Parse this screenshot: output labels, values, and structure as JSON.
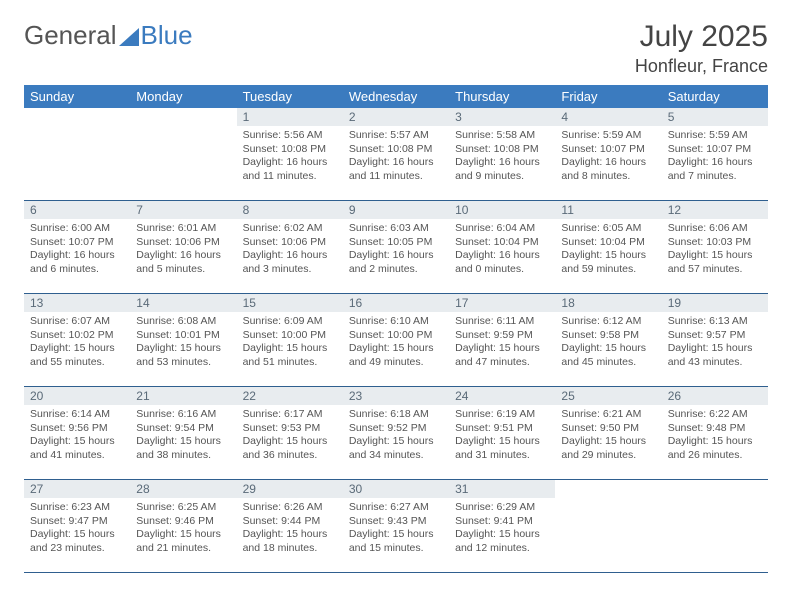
{
  "brand": {
    "word1": "General",
    "word2": "Blue"
  },
  "title": {
    "month_year": "July 2025",
    "location": "Honfleur, France"
  },
  "colors": {
    "header_bg": "#3b7bbf",
    "daynum_bg": "#e8ecef",
    "border": "#2f5f8f",
    "text": "#555"
  },
  "weekdays": [
    "Sunday",
    "Monday",
    "Tuesday",
    "Wednesday",
    "Thursday",
    "Friday",
    "Saturday"
  ],
  "weeks": [
    [
      {
        "empty": true
      },
      {
        "empty": true
      },
      {
        "day": "1",
        "sunrise": "Sunrise: 5:56 AM",
        "sunset": "Sunset: 10:08 PM",
        "daylight": "Daylight: 16 hours and 11 minutes."
      },
      {
        "day": "2",
        "sunrise": "Sunrise: 5:57 AM",
        "sunset": "Sunset: 10:08 PM",
        "daylight": "Daylight: 16 hours and 11 minutes."
      },
      {
        "day": "3",
        "sunrise": "Sunrise: 5:58 AM",
        "sunset": "Sunset: 10:08 PM",
        "daylight": "Daylight: 16 hours and 9 minutes."
      },
      {
        "day": "4",
        "sunrise": "Sunrise: 5:59 AM",
        "sunset": "Sunset: 10:07 PM",
        "daylight": "Daylight: 16 hours and 8 minutes."
      },
      {
        "day": "5",
        "sunrise": "Sunrise: 5:59 AM",
        "sunset": "Sunset: 10:07 PM",
        "daylight": "Daylight: 16 hours and 7 minutes."
      }
    ],
    [
      {
        "day": "6",
        "sunrise": "Sunrise: 6:00 AM",
        "sunset": "Sunset: 10:07 PM",
        "daylight": "Daylight: 16 hours and 6 minutes."
      },
      {
        "day": "7",
        "sunrise": "Sunrise: 6:01 AM",
        "sunset": "Sunset: 10:06 PM",
        "daylight": "Daylight: 16 hours and 5 minutes."
      },
      {
        "day": "8",
        "sunrise": "Sunrise: 6:02 AM",
        "sunset": "Sunset: 10:06 PM",
        "daylight": "Daylight: 16 hours and 3 minutes."
      },
      {
        "day": "9",
        "sunrise": "Sunrise: 6:03 AM",
        "sunset": "Sunset: 10:05 PM",
        "daylight": "Daylight: 16 hours and 2 minutes."
      },
      {
        "day": "10",
        "sunrise": "Sunrise: 6:04 AM",
        "sunset": "Sunset: 10:04 PM",
        "daylight": "Daylight: 16 hours and 0 minutes."
      },
      {
        "day": "11",
        "sunrise": "Sunrise: 6:05 AM",
        "sunset": "Sunset: 10:04 PM",
        "daylight": "Daylight: 15 hours and 59 minutes."
      },
      {
        "day": "12",
        "sunrise": "Sunrise: 6:06 AM",
        "sunset": "Sunset: 10:03 PM",
        "daylight": "Daylight: 15 hours and 57 minutes."
      }
    ],
    [
      {
        "day": "13",
        "sunrise": "Sunrise: 6:07 AM",
        "sunset": "Sunset: 10:02 PM",
        "daylight": "Daylight: 15 hours and 55 minutes."
      },
      {
        "day": "14",
        "sunrise": "Sunrise: 6:08 AM",
        "sunset": "Sunset: 10:01 PM",
        "daylight": "Daylight: 15 hours and 53 minutes."
      },
      {
        "day": "15",
        "sunrise": "Sunrise: 6:09 AM",
        "sunset": "Sunset: 10:00 PM",
        "daylight": "Daylight: 15 hours and 51 minutes."
      },
      {
        "day": "16",
        "sunrise": "Sunrise: 6:10 AM",
        "sunset": "Sunset: 10:00 PM",
        "daylight": "Daylight: 15 hours and 49 minutes."
      },
      {
        "day": "17",
        "sunrise": "Sunrise: 6:11 AM",
        "sunset": "Sunset: 9:59 PM",
        "daylight": "Daylight: 15 hours and 47 minutes."
      },
      {
        "day": "18",
        "sunrise": "Sunrise: 6:12 AM",
        "sunset": "Sunset: 9:58 PM",
        "daylight": "Daylight: 15 hours and 45 minutes."
      },
      {
        "day": "19",
        "sunrise": "Sunrise: 6:13 AM",
        "sunset": "Sunset: 9:57 PM",
        "daylight": "Daylight: 15 hours and 43 minutes."
      }
    ],
    [
      {
        "day": "20",
        "sunrise": "Sunrise: 6:14 AM",
        "sunset": "Sunset: 9:56 PM",
        "daylight": "Daylight: 15 hours and 41 minutes."
      },
      {
        "day": "21",
        "sunrise": "Sunrise: 6:16 AM",
        "sunset": "Sunset: 9:54 PM",
        "daylight": "Daylight: 15 hours and 38 minutes."
      },
      {
        "day": "22",
        "sunrise": "Sunrise: 6:17 AM",
        "sunset": "Sunset: 9:53 PM",
        "daylight": "Daylight: 15 hours and 36 minutes."
      },
      {
        "day": "23",
        "sunrise": "Sunrise: 6:18 AM",
        "sunset": "Sunset: 9:52 PM",
        "daylight": "Daylight: 15 hours and 34 minutes."
      },
      {
        "day": "24",
        "sunrise": "Sunrise: 6:19 AM",
        "sunset": "Sunset: 9:51 PM",
        "daylight": "Daylight: 15 hours and 31 minutes."
      },
      {
        "day": "25",
        "sunrise": "Sunrise: 6:21 AM",
        "sunset": "Sunset: 9:50 PM",
        "daylight": "Daylight: 15 hours and 29 minutes."
      },
      {
        "day": "26",
        "sunrise": "Sunrise: 6:22 AM",
        "sunset": "Sunset: 9:48 PM",
        "daylight": "Daylight: 15 hours and 26 minutes."
      }
    ],
    [
      {
        "day": "27",
        "sunrise": "Sunrise: 6:23 AM",
        "sunset": "Sunset: 9:47 PM",
        "daylight": "Daylight: 15 hours and 23 minutes."
      },
      {
        "day": "28",
        "sunrise": "Sunrise: 6:25 AM",
        "sunset": "Sunset: 9:46 PM",
        "daylight": "Daylight: 15 hours and 21 minutes."
      },
      {
        "day": "29",
        "sunrise": "Sunrise: 6:26 AM",
        "sunset": "Sunset: 9:44 PM",
        "daylight": "Daylight: 15 hours and 18 minutes."
      },
      {
        "day": "30",
        "sunrise": "Sunrise: 6:27 AM",
        "sunset": "Sunset: 9:43 PM",
        "daylight": "Daylight: 15 hours and 15 minutes."
      },
      {
        "day": "31",
        "sunrise": "Sunrise: 6:29 AM",
        "sunset": "Sunset: 9:41 PM",
        "daylight": "Daylight: 15 hours and 12 minutes."
      },
      {
        "empty": true
      },
      {
        "empty": true
      }
    ]
  ]
}
